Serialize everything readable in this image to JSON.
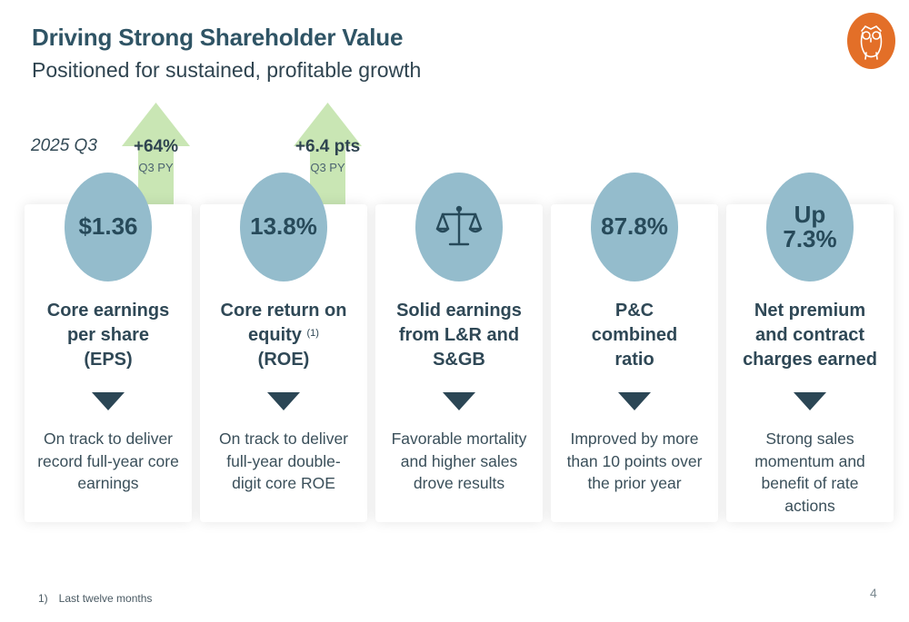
{
  "header": {
    "title": "Driving Strong Shareholder Value",
    "subtitle": "Positioned for sustained, profitable growth"
  },
  "logo": {
    "icon": "owl-icon",
    "color": "#e36f28"
  },
  "period_label": "2025 Q3",
  "arrows": [
    {
      "value": "+64%",
      "sub": "Q3 PY"
    },
    {
      "value": "+6.4 pts",
      "sub": "Q3 PY"
    }
  ],
  "cards": [
    {
      "metric": "$1.36",
      "heading": [
        "Core earnings",
        "per share",
        "(EPS)"
      ],
      "description": [
        "On track to deliver",
        "record full-year core",
        "earnings"
      ]
    },
    {
      "metric": "13.8%",
      "heading": [
        "Core return on",
        "equity",
        "(ROE)"
      ],
      "footnote_ref": "(1)",
      "description": [
        "On track to deliver",
        "full-year double-",
        "digit core ROE"
      ]
    },
    {
      "metric_icon": "scales-icon",
      "heading": [
        "Solid earnings",
        "from L&R and",
        "S&GB"
      ],
      "description": [
        "Favorable mortality",
        "and higher sales",
        "drove results"
      ]
    },
    {
      "metric": "87.8%",
      "heading": [
        "P&C",
        "combined",
        "ratio"
      ],
      "description": [
        "Improved by more",
        "than 10 points over",
        "the prior year"
      ]
    },
    {
      "metric": [
        "Up",
        "7.3%"
      ],
      "heading": [
        "Net premium",
        "and contract",
        "charges earned"
      ],
      "description": [
        "Strong sales",
        "momentum and",
        "benefit of rate",
        "actions"
      ]
    }
  ],
  "footnote": {
    "marker": "1)",
    "text": "Last twelve months"
  },
  "page_number": "4",
  "colors": {
    "accent": "#2f5465",
    "bubble": "#94bccc",
    "arrow": "#c9e6b4",
    "triangle": "#2b4655"
  }
}
